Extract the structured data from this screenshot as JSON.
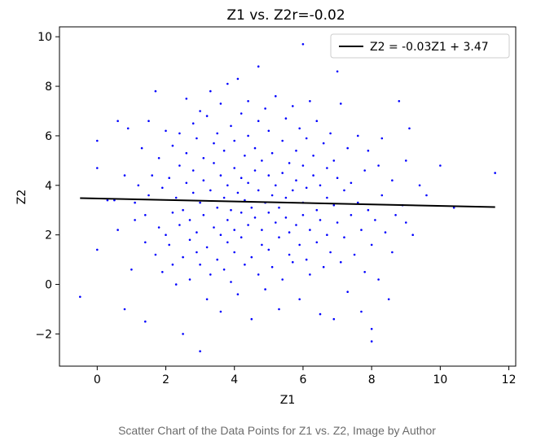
{
  "chart_data": {
    "type": "scatter",
    "title": "Z1 vs. Z2r=-0.02",
    "xlabel": "Z1",
    "ylabel": "Z2",
    "xlim": [
      -1.1,
      12.2
    ],
    "ylim": [
      -3.3,
      10.4
    ],
    "xticks": [
      0,
      2,
      4,
      6,
      8,
      10,
      12
    ],
    "yticks": [
      -2,
      0,
      2,
      4,
      6,
      8,
      10
    ],
    "grid": false,
    "legend_position": "top-right",
    "point_color": "#0000ff",
    "line_color": "#000000",
    "series": [
      {
        "type": "line",
        "name": "Z2 = -0.03Z1 + 3.47",
        "slope": -0.03,
        "intercept": 3.47,
        "x": [
          -0.5,
          11.6
        ]
      },
      {
        "type": "scatter",
        "points": [
          [
            -0.5,
            -0.5
          ],
          [
            0.0,
            1.4
          ],
          [
            0.0,
            4.7
          ],
          [
            0.0,
            5.8
          ],
          [
            0.3,
            3.4
          ],
          [
            0.5,
            3.4
          ],
          [
            0.6,
            6.6
          ],
          [
            0.6,
            2.2
          ],
          [
            0.8,
            -1.0
          ],
          [
            0.8,
            4.4
          ],
          [
            0.9,
            6.3
          ],
          [
            1.0,
            0.6
          ],
          [
            1.1,
            2.6
          ],
          [
            1.1,
            3.3
          ],
          [
            1.2,
            4.0
          ],
          [
            1.3,
            5.5
          ],
          [
            1.4,
            -1.5
          ],
          [
            1.4,
            1.7
          ],
          [
            1.4,
            2.8
          ],
          [
            1.5,
            6.6
          ],
          [
            1.5,
            3.6
          ],
          [
            1.6,
            4.4
          ],
          [
            1.7,
            7.8
          ],
          [
            1.7,
            1.2
          ],
          [
            1.8,
            5.1
          ],
          [
            1.8,
            2.3
          ],
          [
            1.9,
            0.5
          ],
          [
            1.9,
            3.9
          ],
          [
            2.0,
            2.0
          ],
          [
            2.0,
            6.2
          ],
          [
            2.1,
            4.3
          ],
          [
            2.1,
            1.6
          ],
          [
            2.2,
            0.8
          ],
          [
            2.2,
            2.9
          ],
          [
            2.2,
            5.6
          ],
          [
            2.3,
            3.5
          ],
          [
            2.3,
            0.0
          ],
          [
            2.4,
            4.8
          ],
          [
            2.4,
            6.1
          ],
          [
            2.4,
            2.4
          ],
          [
            2.5,
            1.1
          ],
          [
            2.5,
            -2.0
          ],
          [
            2.5,
            3.0
          ],
          [
            2.6,
            7.5
          ],
          [
            2.6,
            4.1
          ],
          [
            2.6,
            5.3
          ],
          [
            2.7,
            1.8
          ],
          [
            2.7,
            0.2
          ],
          [
            2.7,
            2.6
          ],
          [
            2.8,
            6.5
          ],
          [
            2.8,
            3.7
          ],
          [
            2.8,
            4.6
          ],
          [
            2.9,
            1.3
          ],
          [
            2.9,
            5.9
          ],
          [
            2.9,
            2.1
          ],
          [
            3.0,
            -2.7
          ],
          [
            3.0,
            0.8
          ],
          [
            3.0,
            3.3
          ],
          [
            3.0,
            7.0
          ],
          [
            3.1,
            4.2
          ],
          [
            3.1,
            2.8
          ],
          [
            3.1,
            5.1
          ],
          [
            3.2,
            1.5
          ],
          [
            3.2,
            6.8
          ],
          [
            3.2,
            -0.6
          ],
          [
            3.3,
            3.8
          ],
          [
            3.3,
            0.4
          ],
          [
            3.3,
            7.8
          ],
          [
            3.4,
            2.3
          ],
          [
            3.4,
            4.9
          ],
          [
            3.4,
            5.7
          ],
          [
            3.5,
            1.0
          ],
          [
            3.5,
            3.1
          ],
          [
            3.5,
            6.1
          ],
          [
            3.6,
            -1.1
          ],
          [
            3.6,
            2.0
          ],
          [
            3.6,
            4.4
          ],
          [
            3.6,
            7.3
          ],
          [
            3.7,
            0.6
          ],
          [
            3.7,
            3.5
          ],
          [
            3.7,
            5.4
          ],
          [
            3.8,
            8.1
          ],
          [
            3.8,
            1.7
          ],
          [
            3.8,
            2.6
          ],
          [
            3.8,
            4.0
          ],
          [
            3.9,
            6.4
          ],
          [
            3.9,
            0.1
          ],
          [
            3.9,
            3.0
          ],
          [
            4.0,
            4.7
          ],
          [
            4.0,
            5.8
          ],
          [
            4.0,
            1.3
          ],
          [
            4.0,
            2.2
          ],
          [
            4.1,
            8.3
          ],
          [
            4.1,
            3.7
          ],
          [
            4.1,
            -0.4
          ],
          [
            4.2,
            4.3
          ],
          [
            4.2,
            6.9
          ],
          [
            4.2,
            1.9
          ],
          [
            4.2,
            2.9
          ],
          [
            4.3,
            0.8
          ],
          [
            4.3,
            5.2
          ],
          [
            4.3,
            3.4
          ],
          [
            4.4,
            7.4
          ],
          [
            4.4,
            2.4
          ],
          [
            4.4,
            4.1
          ],
          [
            4.4,
            6.0
          ],
          [
            4.5,
            1.1
          ],
          [
            4.5,
            3.1
          ],
          [
            4.5,
            -1.4
          ],
          [
            4.6,
            5.5
          ],
          [
            4.6,
            2.7
          ],
          [
            4.6,
            4.6
          ],
          [
            4.7,
            8.8
          ],
          [
            4.7,
            0.4
          ],
          [
            4.7,
            3.8
          ],
          [
            4.7,
            6.6
          ],
          [
            4.8,
            1.6
          ],
          [
            4.8,
            2.2
          ],
          [
            4.8,
            5.0
          ],
          [
            4.9,
            3.3
          ],
          [
            4.9,
            7.1
          ],
          [
            4.9,
            -0.2
          ],
          [
            5.0,
            4.4
          ],
          [
            5.0,
            1.4
          ],
          [
            5.0,
            2.9
          ],
          [
            5.0,
            6.2
          ],
          [
            5.1,
            3.6
          ],
          [
            5.1,
            0.7
          ],
          [
            5.1,
            5.3
          ],
          [
            5.2,
            2.5
          ],
          [
            5.2,
            4.0
          ],
          [
            5.2,
            7.6
          ],
          [
            5.3,
            1.9
          ],
          [
            5.3,
            3.1
          ],
          [
            5.3,
            -1.0
          ],
          [
            5.4,
            5.8
          ],
          [
            5.4,
            4.5
          ],
          [
            5.4,
            0.2
          ],
          [
            5.5,
            2.7
          ],
          [
            5.5,
            3.5
          ],
          [
            5.5,
            6.7
          ],
          [
            5.6,
            1.2
          ],
          [
            5.6,
            4.9
          ],
          [
            5.6,
            2.1
          ],
          [
            5.7,
            7.2
          ],
          [
            5.7,
            3.8
          ],
          [
            5.7,
            0.9
          ],
          [
            5.8,
            5.4
          ],
          [
            5.8,
            2.4
          ],
          [
            5.8,
            4.2
          ],
          [
            5.9,
            1.6
          ],
          [
            5.9,
            6.3
          ],
          [
            5.9,
            -0.6
          ],
          [
            6.0,
            3.3
          ],
          [
            6.0,
            4.8
          ],
          [
            6.0,
            2.8
          ],
          [
            6.0,
            9.7
          ],
          [
            6.1,
            5.9
          ],
          [
            6.1,
            1.0
          ],
          [
            6.1,
            3.9
          ],
          [
            6.2,
            7.4
          ],
          [
            6.2,
            2.2
          ],
          [
            6.2,
            0.4
          ],
          [
            6.3,
            4.4
          ],
          [
            6.3,
            5.2
          ],
          [
            6.4,
            3.0
          ],
          [
            6.4,
            1.7
          ],
          [
            6.4,
            6.6
          ],
          [
            6.5,
            -1.2
          ],
          [
            6.5,
            2.6
          ],
          [
            6.5,
            4.0
          ],
          [
            6.6,
            5.7
          ],
          [
            6.6,
            0.7
          ],
          [
            6.7,
            3.5
          ],
          [
            6.7,
            2.0
          ],
          [
            6.7,
            4.7
          ],
          [
            6.8,
            6.1
          ],
          [
            6.8,
            1.3
          ],
          [
            6.9,
            -1.4
          ],
          [
            6.9,
            3.2
          ],
          [
            6.9,
            5.0
          ],
          [
            7.0,
            8.6
          ],
          [
            7.0,
            2.5
          ],
          [
            7.0,
            4.3
          ],
          [
            7.1,
            7.3
          ],
          [
            7.1,
            0.9
          ],
          [
            7.2,
            3.8
          ],
          [
            7.2,
            1.9
          ],
          [
            7.3,
            5.5
          ],
          [
            7.3,
            -0.3
          ],
          [
            7.4,
            2.8
          ],
          [
            7.4,
            4.1
          ],
          [
            7.5,
            1.2
          ],
          [
            7.6,
            6.0
          ],
          [
            7.6,
            3.3
          ],
          [
            7.7,
            -1.1
          ],
          [
            7.7,
            2.2
          ],
          [
            7.8,
            4.6
          ],
          [
            7.8,
            0.5
          ],
          [
            7.9,
            3.0
          ],
          [
            7.9,
            5.4
          ],
          [
            8.0,
            -2.3
          ],
          [
            8.0,
            1.6
          ],
          [
            8.0,
            -1.8
          ],
          [
            8.1,
            2.6
          ],
          [
            8.2,
            4.8
          ],
          [
            8.2,
            0.2
          ],
          [
            8.3,
            3.6
          ],
          [
            8.3,
            5.9
          ],
          [
            8.4,
            2.1
          ],
          [
            8.5,
            -0.6
          ],
          [
            8.6,
            4.2
          ],
          [
            8.6,
            1.3
          ],
          [
            8.7,
            2.8
          ],
          [
            8.8,
            7.4
          ],
          [
            8.9,
            3.2
          ],
          [
            9.0,
            5.0
          ],
          [
            9.0,
            2.5
          ],
          [
            9.1,
            6.3
          ],
          [
            9.2,
            2.0
          ],
          [
            9.4,
            4.0
          ],
          [
            9.6,
            3.6
          ],
          [
            10.0,
            4.8
          ],
          [
            10.4,
            3.1
          ],
          [
            11.6,
            4.5
          ]
        ]
      }
    ]
  },
  "caption": "Scatter Chart of the Data Points for Z1 vs. Z2, Image by Author"
}
